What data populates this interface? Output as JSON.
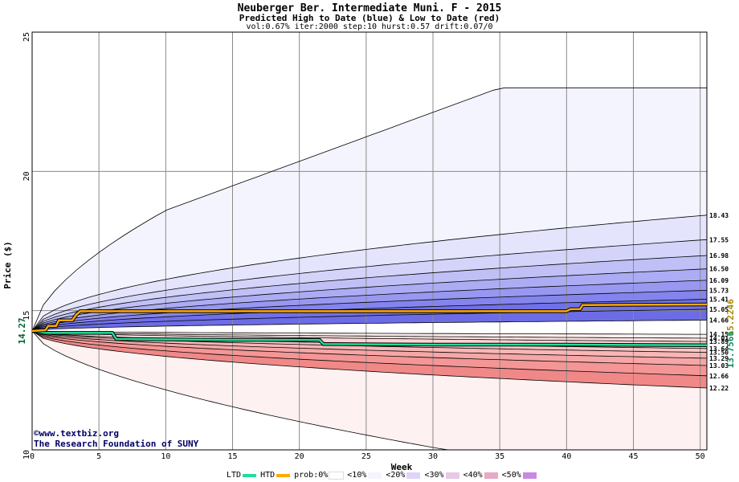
{
  "title": "Neuberger Ber. Intermediate Muni. F - 2015",
  "subtitle": "Predicted High to Date (blue) &  Low to Date (red)",
  "params": "vol:0.67% iter:2000 step:10 hurst:0.57 drift:0.07/0",
  "credit_line1": "©www.textbiz.org",
  "credit_line2": "The Research Foundation of SUNY",
  "chart_data": {
    "type": "area",
    "xlabel": "Week",
    "ylabel": "Price ($)",
    "xlim": [
      0,
      50.5
    ],
    "ylim": [
      10,
      25
    ],
    "x_ticks": [
      "0",
      "5",
      "10",
      "15",
      "20",
      "25",
      "30",
      "35",
      "40",
      "45",
      "50"
    ],
    "y_ticks": [
      "10",
      "15",
      "20",
      "25"
    ],
    "grid": true,
    "start_price": "14.27",
    "start_value": 14.27,
    "htd_final_label": "15.2246",
    "ltd_final_label": "13.7566",
    "htd_path": [
      [
        0,
        14.27
      ],
      [
        1,
        14.3
      ],
      [
        1.2,
        14.45
      ],
      [
        1.8,
        14.45
      ],
      [
        2,
        14.65
      ],
      [
        3,
        14.65
      ],
      [
        3.3,
        14.85
      ],
      [
        3.6,
        14.98
      ],
      [
        10,
        14.98
      ],
      [
        20,
        14.98
      ],
      [
        30,
        14.98
      ],
      [
        40,
        14.98
      ],
      [
        40.3,
        15.05
      ],
      [
        41,
        15.05
      ],
      [
        41.2,
        15.2
      ],
      [
        50.5,
        15.22
      ]
    ],
    "ltd_path": [
      [
        0,
        14.27
      ],
      [
        1,
        14.2
      ],
      [
        6,
        14.2
      ],
      [
        6.3,
        13.98
      ],
      [
        15,
        13.95
      ],
      [
        21.5,
        13.95
      ],
      [
        21.8,
        13.8
      ],
      [
        30,
        13.78
      ],
      [
        40,
        13.78
      ],
      [
        50.5,
        13.76
      ]
    ],
    "upper_curves": [
      {
        "label": "",
        "end": 23.0
      },
      {
        "label": "18.43",
        "end": 18.43
      },
      {
        "label": "17.55",
        "end": 17.55
      },
      {
        "label": "16.98",
        "end": 16.98
      },
      {
        "label": "16.50",
        "end": 16.5
      },
      {
        "label": "16.09",
        "end": 16.09
      },
      {
        "label": "15.73",
        "end": 15.73
      },
      {
        "label": "15.41",
        "end": 15.41
      },
      {
        "label": "15.05",
        "end": 15.05
      },
      {
        "label": "14.66",
        "end": 14.66
      }
    ],
    "lower_curves": [
      {
        "label": "14.15",
        "end": 14.15
      },
      {
        "label": "14.01",
        "end": 14.01
      },
      {
        "label": "13.89",
        "end": 13.89
      },
      {
        "label": "13.64",
        "end": 13.64
      },
      {
        "label": "13.50",
        "end": 13.5
      },
      {
        "label": "13.29",
        "end": 13.29
      },
      {
        "label": "13.03",
        "end": 13.03
      },
      {
        "label": "12.66",
        "end": 12.66
      },
      {
        "label": "12.22",
        "end": 12.22
      },
      {
        "label": "",
        "end": 10.0
      }
    ],
    "upper_fill_colors": [
      "#f4f4fe",
      "#e4e4fc",
      "#d4d4fa",
      "#c0c0f7",
      "#acacf4",
      "#9898f1",
      "#8484ee",
      "#7070ea",
      "#6c6ce6"
    ],
    "lower_fill_colors": [
      "#fef0f0",
      "#fde2e2",
      "#fcd4d4",
      "#fac6c6",
      "#f8b6b6",
      "#f6a6a6",
      "#f49696",
      "#f08888",
      "#fef1f1"
    ],
    "htd_color": "#ffaa00",
    "ltd_color": "#22dd99"
  },
  "legend": {
    "ltd": "LTD",
    "htd": "HTD",
    "prob": "prob:0%",
    "b10": "<10%",
    "b20": "<20%",
    "b30": "<30%",
    "b40": "<40%",
    "b50": "<50%",
    "swatch_colors": [
      "#ffffff",
      "#f4f4fe",
      "#e0d4f8",
      "#e8c8e8",
      "#e8a8c8",
      "#c88adf"
    ]
  }
}
